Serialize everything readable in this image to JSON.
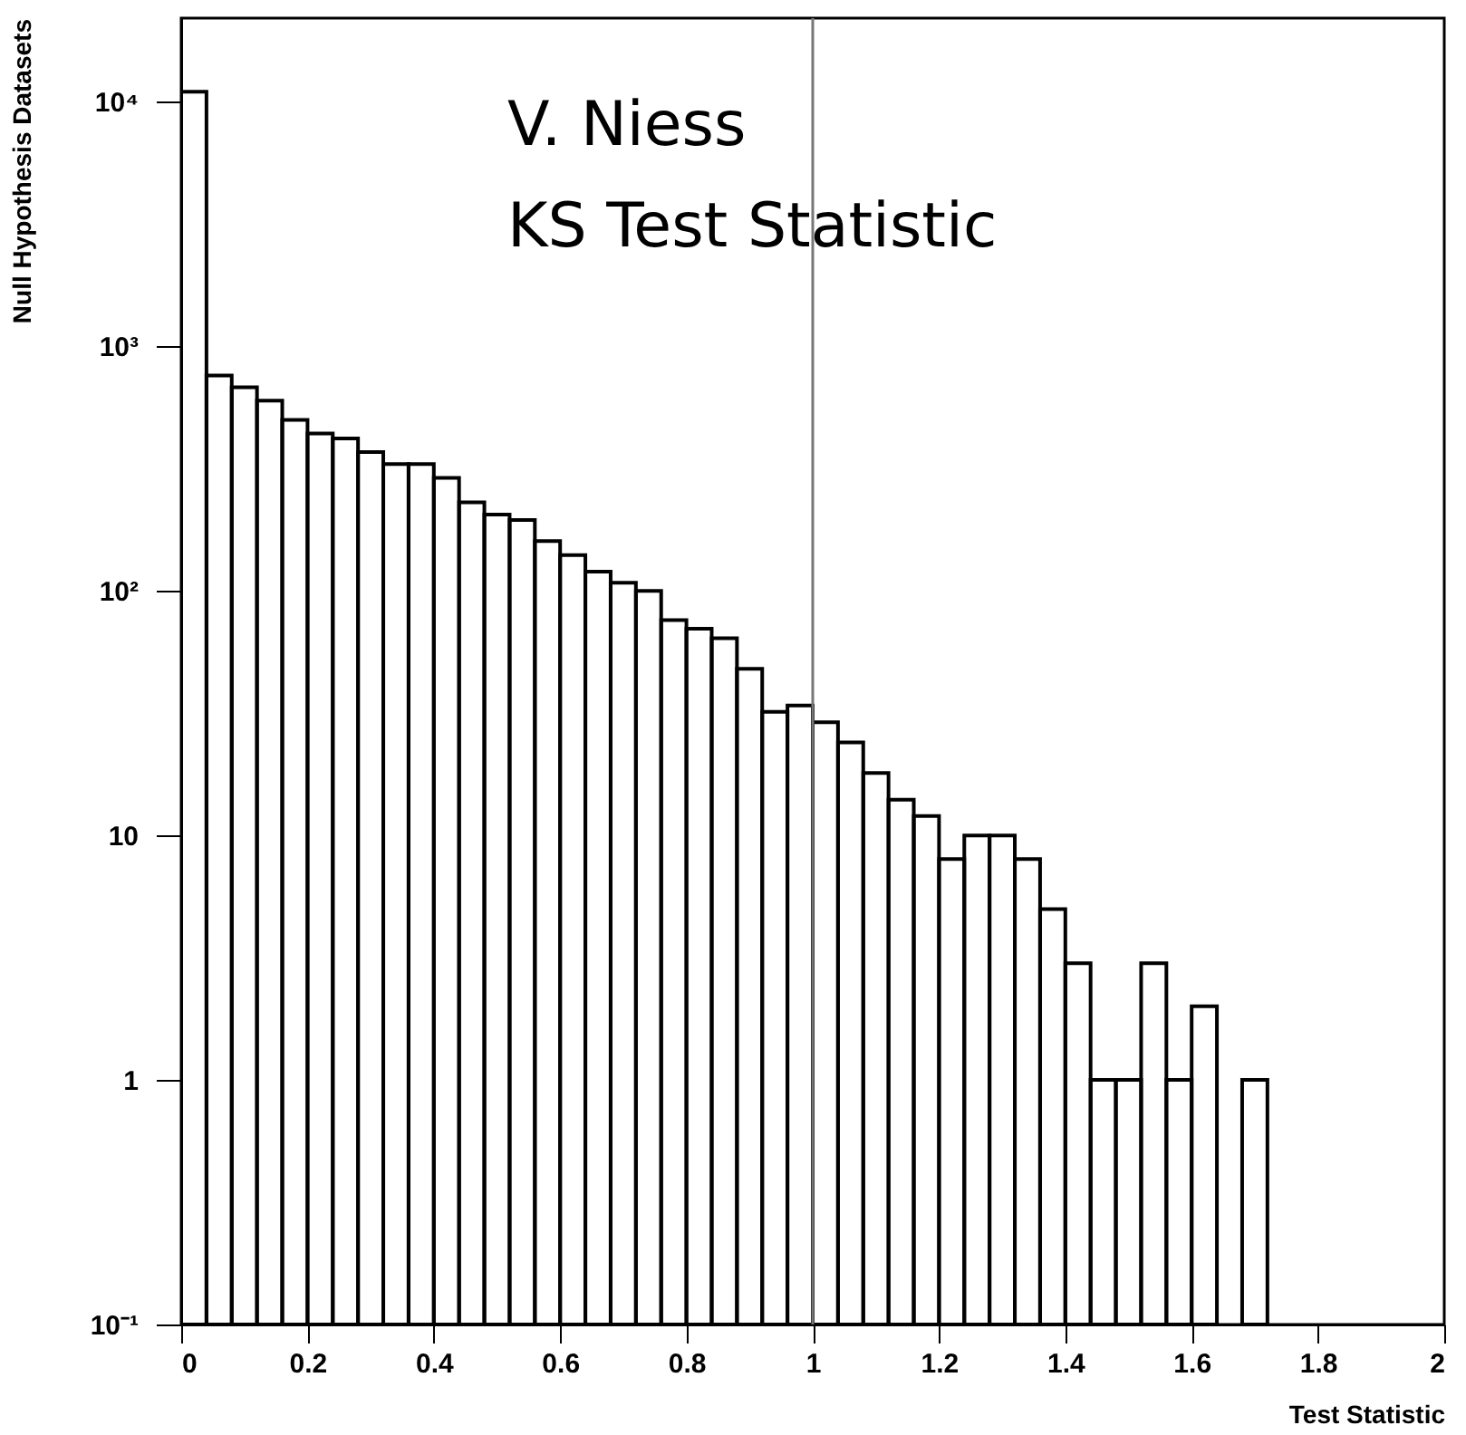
{
  "chart_data": {
    "type": "histogram",
    "xlabel": "Test Statistic",
    "ylabel": "Null Hypothesis Datasets",
    "annotations": [
      "V. Niess",
      "KS Test Statistic"
    ],
    "bins": [
      0,
      0.04,
      0.08,
      0.12,
      0.16,
      0.2,
      0.24,
      0.28,
      0.32,
      0.36,
      0.4,
      0.44,
      0.48,
      0.52,
      0.56,
      0.6,
      0.64,
      0.68,
      0.72,
      0.76,
      0.8,
      0.84,
      0.88,
      0.92,
      0.96,
      1,
      1.04,
      1.08,
      1.12,
      1.16,
      1.2,
      1.24,
      1.28,
      1.32,
      1.36,
      1.4,
      1.44,
      1.48,
      1.52,
      1.56,
      1.6,
      1.64,
      1.68,
      1.72
    ],
    "values": [
      11000,
      760,
      680,
      600,
      500,
      440,
      420,
      370,
      330,
      330,
      290,
      230,
      205,
      195,
      160,
      140,
      120,
      108,
      100,
      76,
      70,
      64,
      48,
      32,
      34,
      29,
      24,
      18,
      14,
      12,
      8,
      10,
      10,
      8,
      5,
      3,
      1,
      1,
      3,
      1,
      2,
      null,
      1
    ],
    "color": "#000000",
    "log": "y",
    "grid": false,
    "xlim": [
      0,
      2
    ],
    "xticks": [
      0,
      0.2,
      0.4,
      0.6,
      0.8,
      1,
      1.2,
      1.4,
      1.6,
      1.8,
      2
    ],
    "ylim": [
      0.1,
      22000
    ],
    "yticks": [
      {
        "value": 0.1,
        "label": "10⁻¹"
      },
      1,
      10,
      {
        "value": 100,
        "label": "10²"
      },
      {
        "value": 1000,
        "label": "10³"
      },
      {
        "value": 10000,
        "label": "10⁴"
      }
    ],
    "ref_lines": [
      {
        "axis": "x",
        "value": 1,
        "color": "#777777"
      }
    ]
  }
}
